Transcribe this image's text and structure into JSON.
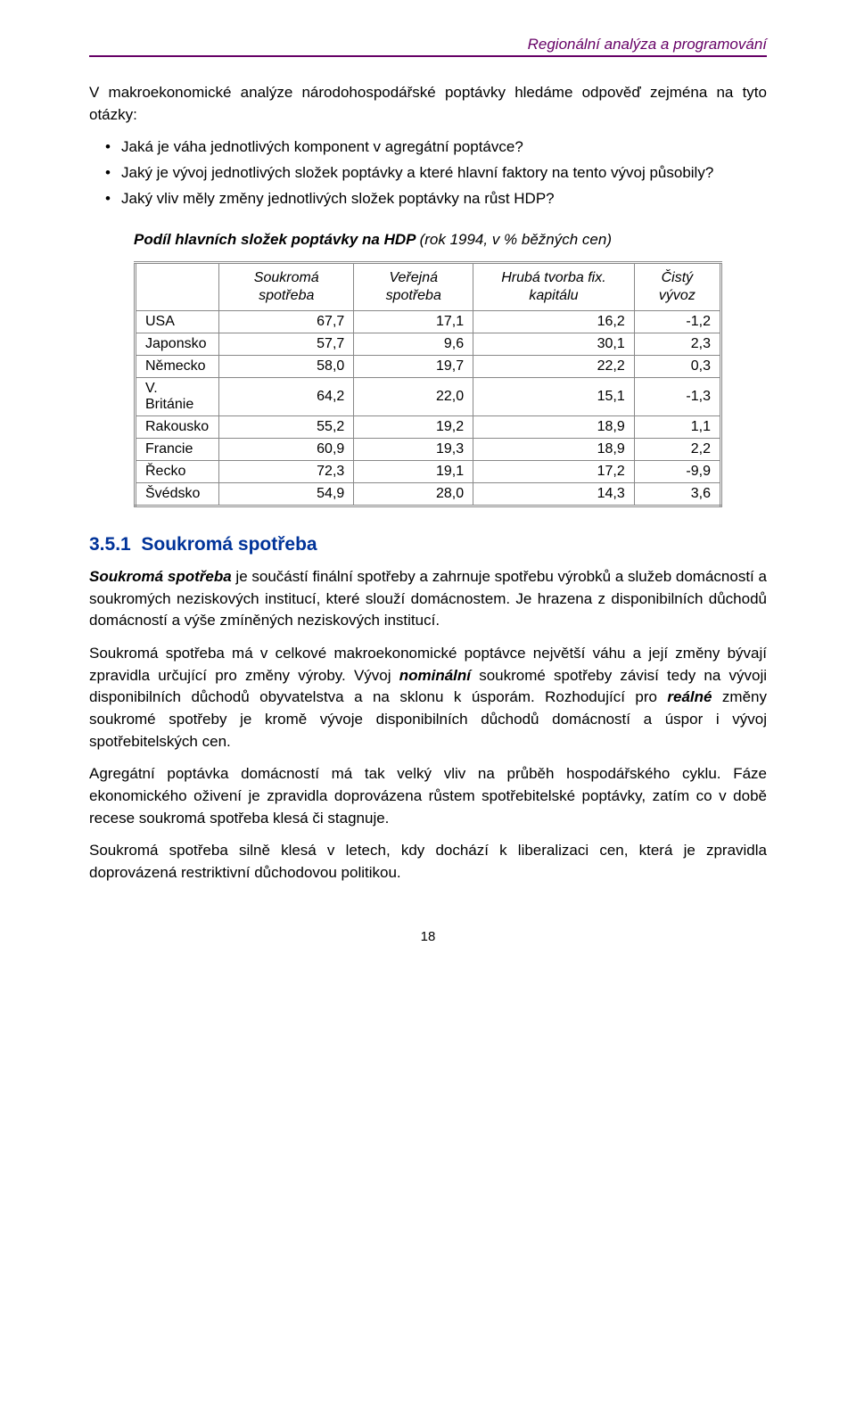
{
  "header": {
    "running_title": "Regionální analýza a programování"
  },
  "intro": {
    "lead_in": "V makroekonomické analýze národohospodářské poptávky hledáme odpověď zejména na tyto otázky:",
    "bullets": [
      "Jaká je váha jednotlivých komponent v agregátní poptávce?",
      "Jaký je vývoj jednotlivých složek poptávky a které hlavní faktory na tento vývoj působily?",
      "Jaký vliv měly změny jednotlivých složek poptávky na růst HDP?"
    ]
  },
  "table": {
    "caption_bold": "Podíl hlavních složek poptávky na HDP ",
    "caption_rest": "(rok 1994, v % běžných cen)",
    "columns": [
      "",
      "Soukromá spotřeba",
      "Veřejná spotřeba",
      "Hrubá tvorba fix. kapitálu",
      "Čistý vývoz"
    ],
    "rows": [
      [
        "USA",
        "67,7",
        "17,1",
        "16,2",
        "-1,2"
      ],
      [
        "Japonsko",
        "57,7",
        "9,6",
        "30,1",
        "2,3"
      ],
      [
        "Německo",
        "58,0",
        "19,7",
        "22,2",
        "0,3"
      ],
      [
        "V. Británie",
        "64,2",
        "22,0",
        "15,1",
        "-1,3"
      ],
      [
        "Rakousko",
        "55,2",
        "19,2",
        "18,9",
        "1,1"
      ],
      [
        "Francie",
        "60,9",
        "19,3",
        "18,9",
        "2,2"
      ],
      [
        "Řecko",
        "72,3",
        "19,1",
        "17,2",
        "-9,9"
      ],
      [
        "Švédsko",
        "54,9",
        "28,0",
        "14,3",
        "3,6"
      ]
    ]
  },
  "section": {
    "number": "3.5.1",
    "title": "Soukromá spotřeba",
    "p1_lead_bold": "Soukromá spotřeba",
    "p1_rest": " je součástí finální spotřeby a zahrnuje spotřebu výrobků a služeb domácností a soukromých neziskových institucí, které slouží domácnostem. Je hrazena z disponibilních důchodů domácností a výše zmíněných neziskových institucí.",
    "p2_pre": "Soukromá spotřeba má v celkové makroekonomické poptávce největší váhu a její změny bývají zpravidla určující pro změny výroby. Vývoj ",
    "p2_bold1": "nominální",
    "p2_mid": " soukromé spotřeby závisí tedy na vývoji disponibilních důchodů obyvatelstva a na sklonu k úsporám. Rozhodující pro ",
    "p2_bold2": "reálné",
    "p2_post": " změny soukromé spotřeby je kromě vývoje disponibilních důchodů domácností a úspor i vývoj spotřebitelských cen.",
    "p3": "Agregátní poptávka domácností má tak velký vliv na průběh hospodářského cyklu. Fáze ekonomického oživení je zpravidla doprovázena růstem spotřebitelské poptávky, zatím co v době recese soukromá spotřeba klesá či stagnuje.",
    "p4": "Soukromá spotřeba silně klesá v letech, kdy dochází k liberalizaci cen, která je zpravidla doprovázená restriktivní důchodovou politikou."
  },
  "footer": {
    "page_number": "18"
  }
}
